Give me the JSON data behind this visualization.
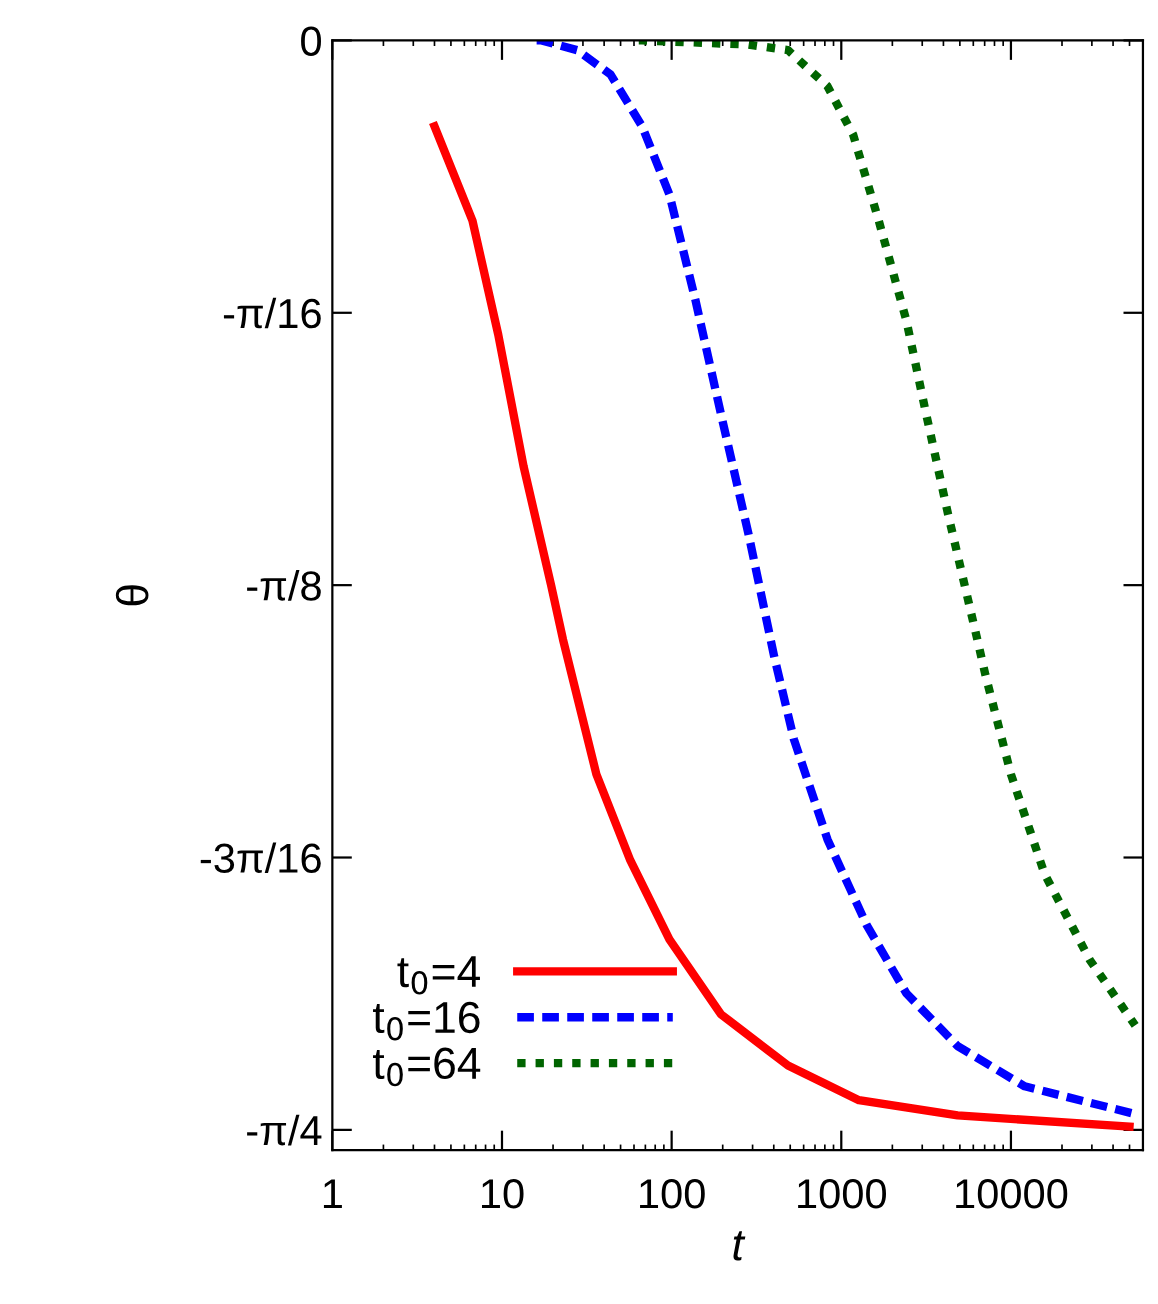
{
  "chart_data": {
    "type": "line",
    "xlabel": "t",
    "ylabel": "θ",
    "log": "x",
    "xlim": [
      1,
      60000
    ],
    "xticks": [
      1,
      10,
      100,
      1000,
      10000
    ],
    "ylim": [
      -0.8,
      0
    ],
    "yticks": [
      {
        "value": 0,
        "label": "0"
      },
      {
        "value": -0.19635,
        "label": "-π/16"
      },
      {
        "value": -0.392699,
        "label": "-π/8"
      },
      {
        "value": -0.589049,
        "label": "-3π/16"
      },
      {
        "value": -0.785398,
        "label": "-π/4"
      }
    ],
    "grid": false,
    "legend": "bottom left",
    "marker": "none",
    "series": [
      {
        "name": "t$_{0}$=4",
        "color": "#ff0000",
        "line_style": "solid",
        "x": [
          4,
          6.7,
          9.5,
          13.4,
          19.5,
          22.9,
          36,
          57,
          97,
          195,
          485,
          1270,
          4850,
          50000
        ],
        "values": [
          -0.062,
          -0.13,
          -0.212,
          -0.307,
          -0.393,
          -0.432,
          -0.529,
          -0.591,
          -0.648,
          -0.702,
          -0.739,
          -0.764,
          -0.775,
          -0.783
        ]
      },
      {
        "name": "t$_{0}$=16",
        "color": "#0000ff",
        "line_style": "dashed",
        "x": [
          16,
          17.1,
          27.7,
          43.6,
          67,
          97,
          138,
          195,
          284,
          402,
          526,
          829,
          1415,
          2420,
          4850,
          12050,
          54000
        ],
        "values": [
          0,
          0,
          -0.007,
          -0.0245,
          -0.062,
          -0.111,
          -0.187,
          -0.269,
          -0.356,
          -0.444,
          -0.504,
          -0.576,
          -0.638,
          -0.687,
          -0.725,
          -0.754,
          -0.774
        ]
      },
      {
        "name": "t$_{0}$=64",
        "color": "#006400",
        "line_style": "dotted",
        "x": [
          64,
          67,
          284,
          485,
          829,
          1175,
          1663,
          2420,
          3160,
          4250,
          6340,
          7060,
          10000,
          15800,
          29200,
          54000
        ],
        "values": [
          0,
          0,
          -0.003,
          -0.007,
          -0.033,
          -0.068,
          -0.13,
          -0.202,
          -0.269,
          -0.341,
          -0.432,
          -0.457,
          -0.529,
          -0.601,
          -0.663,
          -0.71
        ]
      }
    ]
  }
}
